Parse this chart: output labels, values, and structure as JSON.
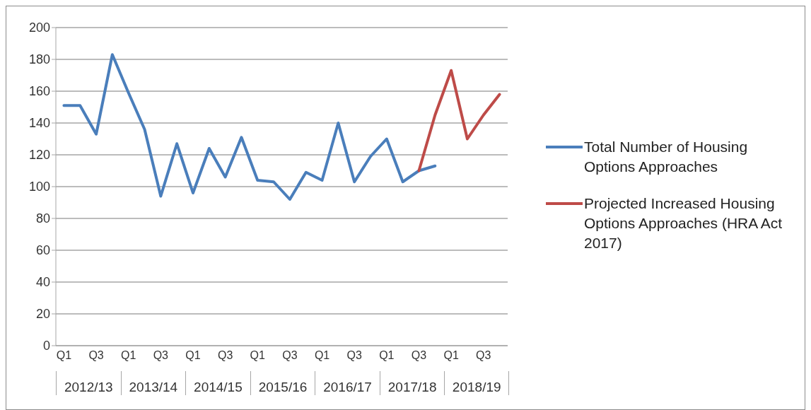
{
  "chart_data": {
    "type": "line",
    "categories": [
      "Q1",
      null,
      "Q3",
      null,
      "Q1",
      null,
      "Q3",
      null,
      "Q1",
      null,
      "Q3",
      null,
      "Q1",
      null,
      "Q3",
      null,
      "Q1",
      null,
      "Q3",
      null,
      "Q1",
      null,
      "Q3",
      null,
      "Q1",
      null,
      "Q3",
      null
    ],
    "series": [
      {
        "name": "Total Number of Housing Options Approaches",
        "color": "#4a7ebb",
        "values": [
          151,
          151,
          133,
          183,
          159,
          136,
          94,
          127,
          96,
          124,
          106,
          131,
          104,
          103,
          92,
          109,
          104,
          140,
          103,
          119,
          130,
          103,
          110,
          113,
          null,
          null,
          null,
          null
        ]
      },
      {
        "name": "Projected Increased Housing Options Approaches (HRA Act 2017)",
        "color": "#be4b48",
        "values": [
          null,
          null,
          null,
          null,
          null,
          null,
          null,
          null,
          null,
          null,
          null,
          null,
          null,
          null,
          null,
          null,
          null,
          null,
          null,
          null,
          null,
          null,
          110,
          145,
          173,
          130,
          145,
          158
        ]
      }
    ],
    "annotations": [
      "2012/13",
      "2013/14",
      "2014/15",
      "2015/16",
      "2016/17",
      "2017/18",
      "2018/19"
    ],
    "ylim": [
      0,
      200
    ],
    "yticks": [
      0,
      20,
      40,
      60,
      80,
      100,
      120,
      140,
      160,
      180,
      200
    ],
    "grid": "y",
    "legend": "right",
    "marker": "none",
    "line_style": "solid"
  }
}
